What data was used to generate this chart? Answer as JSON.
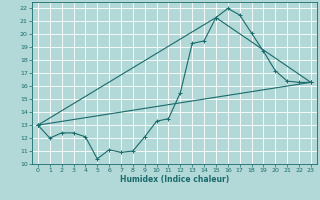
{
  "xlabel": "Humidex (Indice chaleur)",
  "bg_color": "#b2d8d8",
  "grid_color": "#ffffff",
  "line_color": "#1a6b6b",
  "xlim": [
    -0.5,
    23.5
  ],
  "ylim": [
    10,
    22.5
  ],
  "xticks": [
    0,
    1,
    2,
    3,
    4,
    5,
    6,
    7,
    8,
    9,
    10,
    11,
    12,
    13,
    14,
    15,
    16,
    17,
    18,
    19,
    20,
    21,
    22,
    23
  ],
  "yticks": [
    10,
    11,
    12,
    13,
    14,
    15,
    16,
    17,
    18,
    19,
    20,
    21,
    22
  ],
  "line1_x": [
    0,
    1,
    2,
    3,
    4,
    5,
    6,
    7,
    8,
    9,
    10,
    11,
    12,
    13,
    14,
    15,
    16,
    17,
    18,
    19,
    20,
    21,
    22,
    23
  ],
  "line1_y": [
    13,
    12,
    12.4,
    12.4,
    12.1,
    10.4,
    11.1,
    10.9,
    11.0,
    12.1,
    13.3,
    13.5,
    15.5,
    19.3,
    19.5,
    21.3,
    22.0,
    21.5,
    20.1,
    18.7,
    17.2,
    16.4,
    16.3,
    16.3
  ],
  "line2_x": [
    0,
    15,
    23
  ],
  "line2_y": [
    13,
    21.3,
    16.3
  ],
  "line3_x": [
    0,
    23
  ],
  "line3_y": [
    13,
    16.3
  ]
}
